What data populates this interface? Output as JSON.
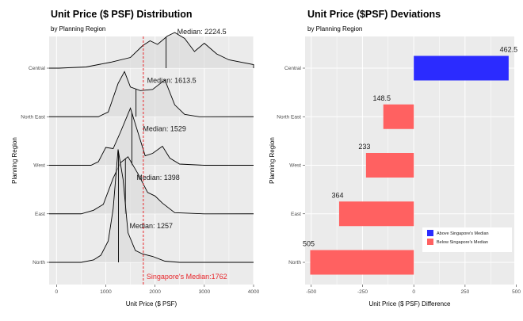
{
  "chart_data": [
    {
      "type": "ridgeline",
      "title": "Unit Price ($ PSF) Distribution",
      "subtitle": "by Planning Region",
      "xlabel": "Unit Price ($ PSF)",
      "ylabel": "Planning Region",
      "xlim": [
        -150,
        4000
      ],
      "xticks": [
        0,
        1000,
        2000,
        3000,
        4000
      ],
      "categories": [
        "Central",
        "North East",
        "West",
        "East",
        "North"
      ],
      "series": [
        {
          "name": "Central",
          "median": 2224.5,
          "median_label": "Median: 2224.5",
          "density": [
            [
              50,
              0
            ],
            [
              600,
              0.01
            ],
            [
              1100,
              0.05
            ],
            [
              1500,
              0.09
            ],
            [
              1750,
              0.19
            ],
            [
              1900,
              0.23
            ],
            [
              2050,
              0.2
            ],
            [
              2250,
              0.27
            ],
            [
              2400,
              0.3
            ],
            [
              2600,
              0.25
            ],
            [
              2800,
              0.14
            ],
            [
              3000,
              0.21
            ],
            [
              3250,
              0.12
            ],
            [
              3500,
              0.07
            ],
            [
              4000,
              0.03
            ]
          ]
        },
        {
          "name": "North East",
          "median": 1613.5,
          "median_label": "Median: 1613.5",
          "density": [
            [
              850,
              0
            ],
            [
              1050,
              0.04
            ],
            [
              1250,
              0.28
            ],
            [
              1380,
              0.38
            ],
            [
              1500,
              0.25
            ],
            [
              1700,
              0.22
            ],
            [
              1950,
              0.23
            ],
            [
              2200,
              0.31
            ],
            [
              2400,
              0.1
            ],
            [
              2600,
              0.02
            ],
            [
              2900,
              0
            ]
          ]
        },
        {
          "name": "West",
          "median": 1529,
          "median_label": "Median: 1529",
          "density": [
            [
              700,
              0
            ],
            [
              850,
              0.03
            ],
            [
              1000,
              0.15
            ],
            [
              1150,
              0.14
            ],
            [
              1300,
              0.28
            ],
            [
              1500,
              0.48
            ],
            [
              1650,
              0.28
            ],
            [
              1800,
              0.08
            ],
            [
              1950,
              0.1
            ],
            [
              2150,
              0.16
            ],
            [
              2300,
              0.06
            ],
            [
              2500,
              0.01
            ],
            [
              3000,
              0
            ]
          ]
        },
        {
          "name": "East",
          "median": 1398,
          "median_label": "Median: 1398",
          "density": [
            [
              500,
              0
            ],
            [
              750,
              0.03
            ],
            [
              950,
              0.08
            ],
            [
              1150,
              0.3
            ],
            [
              1300,
              0.43
            ],
            [
              1450,
              0.48
            ],
            [
              1650,
              0.34
            ],
            [
              1850,
              0.18
            ],
            [
              2000,
              0.15
            ],
            [
              2150,
              0.09
            ],
            [
              2400,
              0.01
            ],
            [
              3000,
              0
            ]
          ]
        },
        {
          "name": "North",
          "median": 1257,
          "median_label": "Median: 1257",
          "density": [
            [
              500,
              0
            ],
            [
              750,
              0.02
            ],
            [
              900,
              0.06
            ],
            [
              1050,
              0.18
            ],
            [
              1150,
              0.45
            ],
            [
              1250,
              0.95
            ],
            [
              1350,
              0.7
            ],
            [
              1450,
              0.25
            ],
            [
              1600,
              0.1
            ],
            [
              1750,
              0.07
            ],
            [
              1950,
              0.05
            ],
            [
              2200,
              0.01
            ],
            [
              2500,
              0
            ]
          ]
        }
      ],
      "reference_line": {
        "value": 1762,
        "label": "Singapore's Median:1762",
        "color": "#e8262b"
      }
    },
    {
      "type": "bar",
      "orientation": "horizontal",
      "title": "Unit Price ($PSF) Deviations",
      "subtitle": "by Planning Region",
      "xlabel": "Unit Price ($ PSF) Difference",
      "ylabel": "Planning Region",
      "xlim": [
        -530,
        490
      ],
      "xticks": [
        -500,
        -250,
        0,
        250,
        500
      ],
      "categories": [
        "Central",
        "North East",
        "West",
        "East",
        "North"
      ],
      "values": [
        462.5,
        -148.5,
        -233,
        -364,
        -505
      ],
      "value_labels": [
        "462.5",
        "148.5",
        "233",
        "364",
        "505"
      ],
      "legend": {
        "position": "bottom-right",
        "entries": [
          {
            "name": "Above Singapore's Median",
            "color": "#2b2bff"
          },
          {
            "name": "Below Singapore's Median",
            "color": "#ff6161"
          }
        ]
      }
    }
  ]
}
